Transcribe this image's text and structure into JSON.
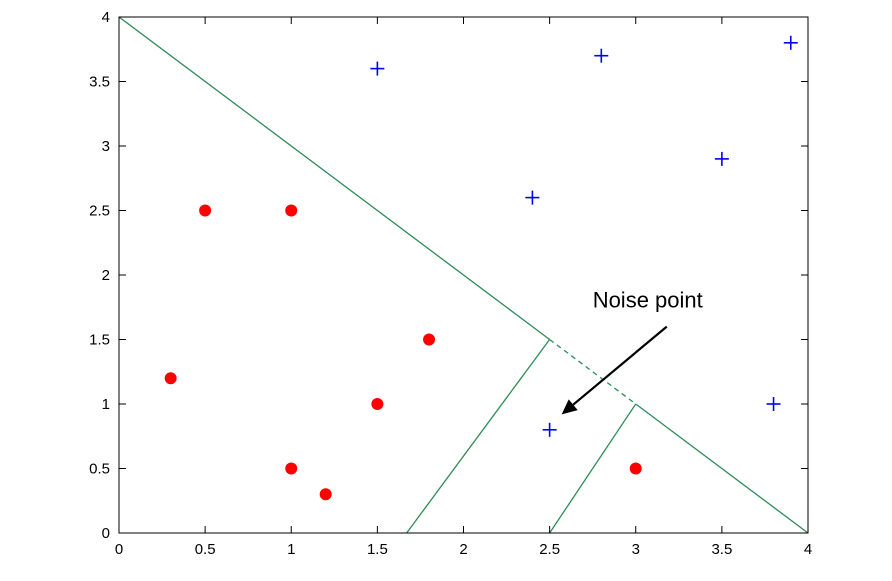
{
  "chart_data": {
    "type": "scatter",
    "xlim": [
      0,
      4
    ],
    "ylim": [
      0,
      4
    ],
    "x_ticks": [
      "0",
      "0.5",
      "1",
      "1.5",
      "2",
      "2.5",
      "3",
      "3.5",
      "4"
    ],
    "y_ticks": [
      "0",
      "0.5",
      "1",
      "1.5",
      "2",
      "2.5",
      "3",
      "3.5",
      "4"
    ],
    "grid": false,
    "series": [
      {
        "marker": "dot",
        "color": "#ff0000",
        "points": [
          [
            0.3,
            1.2
          ],
          [
            0.5,
            2.5
          ],
          [
            1.0,
            2.5
          ],
          [
            1.0,
            0.5
          ],
          [
            1.2,
            0.3
          ],
          [
            1.5,
            1.0
          ],
          [
            1.8,
            1.5
          ],
          [
            3.0,
            0.5
          ]
        ]
      },
      {
        "marker": "plus",
        "color": "#0000ff",
        "points": [
          [
            1.5,
            3.6
          ],
          [
            2.4,
            2.6
          ],
          [
            2.8,
            3.7
          ],
          [
            3.5,
            2.9
          ],
          [
            3.9,
            3.8
          ],
          [
            3.8,
            1.0
          ],
          [
            2.5,
            0.8
          ]
        ]
      }
    ],
    "boundaries": [
      {
        "style": "solid",
        "color": "#2e8b57",
        "points": [
          [
            0,
            4
          ],
          [
            2.5,
            1.5
          ]
        ]
      },
      {
        "style": "dashed",
        "color": "#2e8b57",
        "points": [
          [
            2.5,
            1.5
          ],
          [
            3.0,
            1.0
          ]
        ]
      },
      {
        "style": "solid",
        "color": "#2e8b57",
        "points": [
          [
            3.0,
            1.0
          ],
          [
            4,
            0
          ]
        ]
      },
      {
        "style": "solid",
        "color": "#2e8b57",
        "points": [
          [
            2.5,
            1.5
          ],
          [
            1.67,
            0
          ]
        ]
      },
      {
        "style": "solid",
        "color": "#2e8b57",
        "points": [
          [
            3.0,
            1.0
          ],
          [
            2.5,
            0
          ]
        ]
      }
    ],
    "annotation": {
      "text": "Noise point",
      "text_at": [
        2.75,
        1.75
      ],
      "arrow_from": [
        3.18,
        1.6
      ],
      "arrow_to": [
        2.57,
        0.92
      ]
    }
  }
}
